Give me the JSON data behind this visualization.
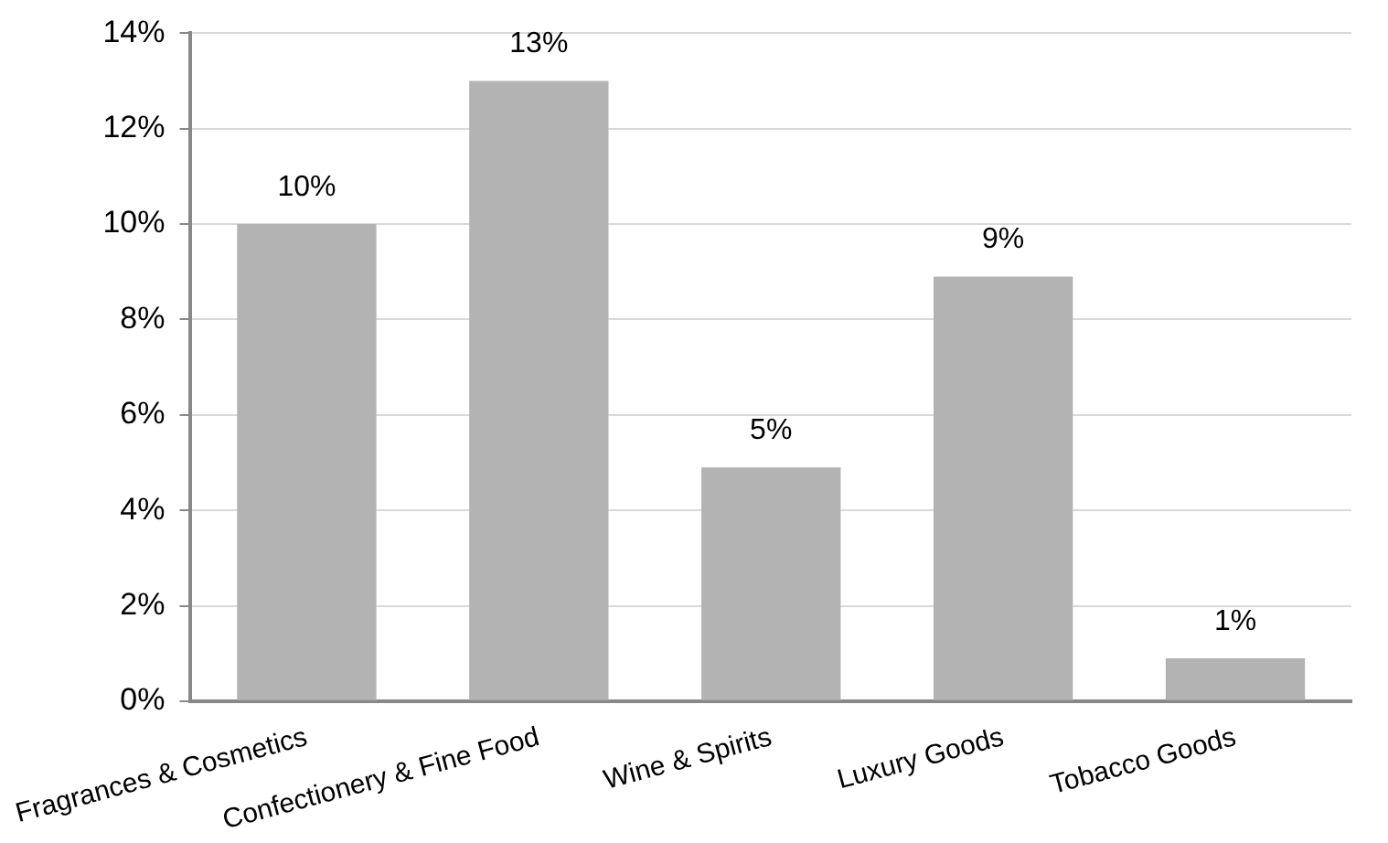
{
  "chart_data": {
    "type": "bar",
    "categories": [
      "Fragrances & Cosmetics",
      "Confectionery & Fine Food",
      "Wine & Spirits",
      "Luxury Goods",
      "Tobacco Goods"
    ],
    "values": [
      10.0,
      13.0,
      4.9,
      8.9,
      0.9
    ],
    "value_labels": [
      "10%",
      "13%",
      "5%",
      "9%",
      "1%"
    ],
    "color": "#b3b3b3",
    "ylim": [
      0,
      14
    ],
    "yticks": [
      {
        "value": 0,
        "label": "0%"
      },
      {
        "value": 2,
        "label": "2%"
      },
      {
        "value": 4,
        "label": "4%"
      },
      {
        "value": 6,
        "label": "6%"
      },
      {
        "value": 8,
        "label": "8%"
      },
      {
        "value": 10,
        "label": "10%"
      },
      {
        "value": 12,
        "label": "12%"
      },
      {
        "value": 14,
        "label": "14%"
      }
    ],
    "grid": "y",
    "legend": false
  }
}
